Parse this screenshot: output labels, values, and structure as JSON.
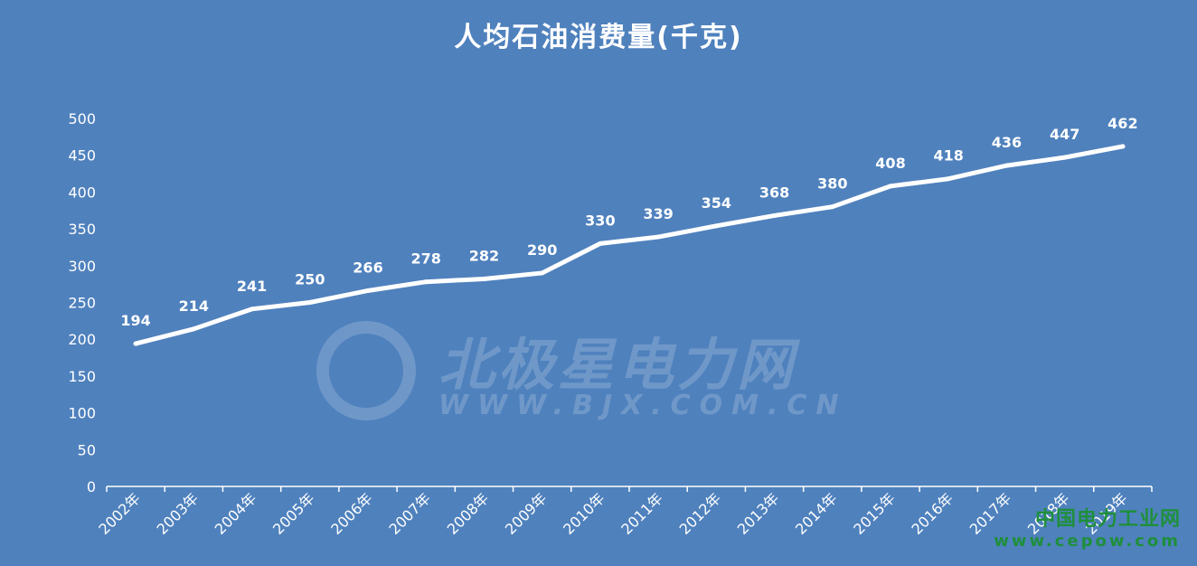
{
  "chart_data": {
    "type": "line",
    "title": "人均石油消费量(千克)",
    "xlabel": "",
    "ylabel": "",
    "ylim": [
      0,
      500
    ],
    "yticks": [
      0,
      50,
      100,
      150,
      200,
      250,
      300,
      350,
      400,
      450,
      500
    ],
    "categories": [
      "2002年",
      "2003年",
      "2004年",
      "2005年",
      "2006年",
      "2007年",
      "2008年",
      "2009年",
      "2010年",
      "2011年",
      "2012年",
      "2013年",
      "2014年",
      "2015年",
      "2016年",
      "2017年",
      "2018年",
      "2019年"
    ],
    "series": [
      {
        "values": [
          194,
          214,
          241,
          250,
          266,
          278,
          282,
          290,
          330,
          339,
          354,
          368,
          380,
          408,
          418,
          436,
          447,
          462
        ]
      }
    ],
    "grid": false,
    "legend": "none",
    "colors": {
      "background": "#4f81bd",
      "line": "#ffffff",
      "text": "#ffffff"
    }
  },
  "watermark": {
    "brand": "北极星电力网",
    "url": "WWW.BJX.COM.CN"
  },
  "corner_brand": {
    "name": "中国电力工业网",
    "url": "www.cepow.com"
  }
}
